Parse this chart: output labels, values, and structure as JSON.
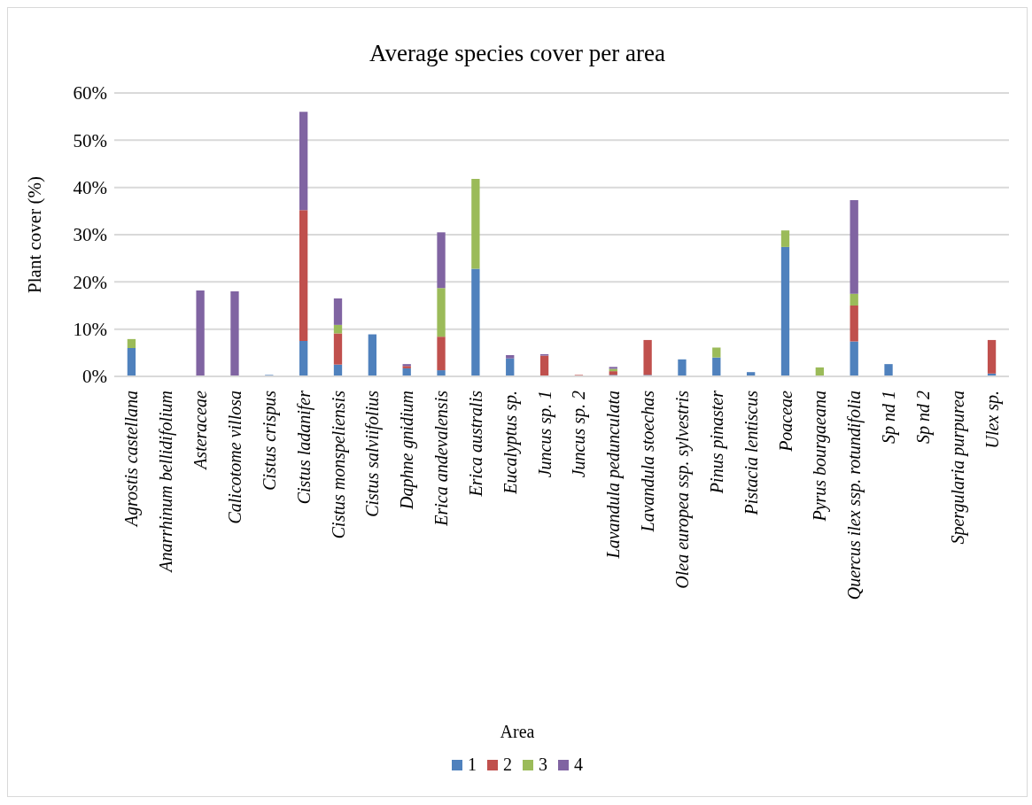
{
  "chart_data": {
    "type": "bar",
    "stacked": true,
    "title": "Average species cover per area",
    "ylabel": "Plant cover (%)",
    "legend_title": "Area",
    "legend": "bottom",
    "grid": "y",
    "categories": [
      "Agrostis castellana",
      "Anarrhinum bellidifolium",
      "Asteraceae",
      "Calicotome villosa",
      "Cistus crispus",
      "Cistus ladanifer",
      "Cistus monspeliensis",
      "Cistus salviifolius",
      "Daphne gnidium",
      "Erica andevalensis",
      "Erica australis",
      "Eucalyptus sp.",
      "Juncus sp. 1",
      "Juncus sp. 2",
      "Lavandula pedunculata",
      "Lavandula stoechas",
      "Olea europea ssp. sylvestris",
      "Pinus pinaster",
      "Pistacia lentiscus",
      "Poaceae",
      "Pyrus bourgaeana",
      "Quercus ilex ssp. rotundifolia",
      "Sp nd 1",
      "Sp nd 2",
      "Spergularia purpurea",
      "Ulex sp."
    ],
    "ylim": [
      0,
      60
    ],
    "yticks": [
      {
        "value": 0,
        "label": "0%"
      },
      {
        "value": 10,
        "label": "10%"
      },
      {
        "value": 20,
        "label": "20%"
      },
      {
        "value": 30,
        "label": "30%"
      },
      {
        "value": 40,
        "label": "40%"
      },
      {
        "value": 50,
        "label": "50%"
      },
      {
        "value": 60,
        "label": "60%"
      }
    ],
    "series": [
      {
        "name": "1",
        "color": "#4f81bd",
        "values": [
          6.0,
          0,
          0,
          0,
          0.3,
          7.5,
          2.5,
          8.9,
          1.7,
          1.3,
          22.8,
          3.8,
          0,
          0,
          0.3,
          0.3,
          3.6,
          4.0,
          0.9,
          27.4,
          0,
          7.4,
          2.6,
          0,
          0,
          0.6
        ]
      },
      {
        "name": "2",
        "color": "#c0504d",
        "values": [
          0,
          0,
          0.2,
          0,
          0,
          27.7,
          6.6,
          0,
          0.5,
          7.1,
          0,
          0,
          4.4,
          0.3,
          0.8,
          7.4,
          0,
          0,
          0,
          0,
          0,
          7.6,
          0,
          0,
          0,
          7.1
        ]
      },
      {
        "name": "3",
        "color": "#9bbb59",
        "values": [
          1.9,
          0,
          0,
          0,
          0,
          0,
          1.8,
          0,
          0,
          10.3,
          19.0,
          0,
          0,
          0,
          0.5,
          0,
          0,
          2.1,
          0,
          3.5,
          1.9,
          2.5,
          0,
          null,
          0,
          0
        ]
      },
      {
        "name": "4",
        "color": "#8064a2",
        "values": [
          0,
          0,
          18.0,
          18.0,
          0,
          20.8,
          5.6,
          0,
          0.4,
          11.8,
          0,
          0.7,
          0.3,
          0,
          0.4,
          0,
          0,
          0,
          0,
          0,
          0,
          19.8,
          0,
          0,
          0,
          0
        ]
      }
    ]
  }
}
